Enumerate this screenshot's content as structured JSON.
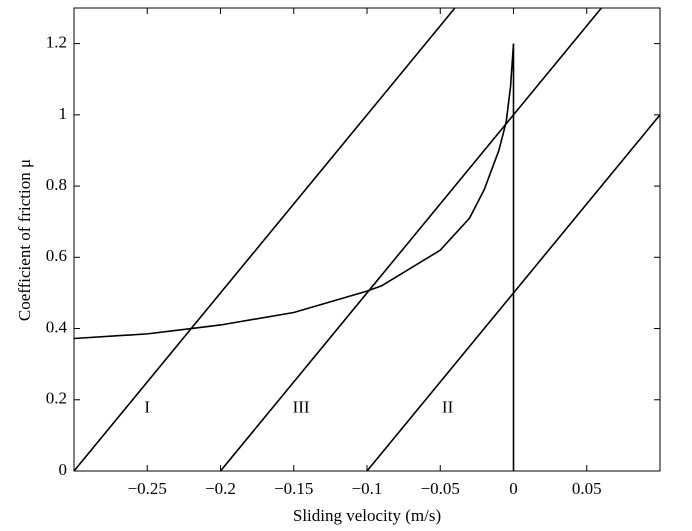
{
  "chart_data": {
    "type": "line",
    "x_label": "Sliding velocity (m/s)",
    "y_label": "Coefficient of friction μ",
    "xlim": [
      -0.3,
      0.1
    ],
    "ylim": [
      0,
      1.3
    ],
    "xticks": [
      {
        "value": -0.25,
        "label": "−0.25"
      },
      {
        "value": -0.2,
        "label": "−0.2"
      },
      {
        "value": -0.15,
        "label": "−0.15"
      },
      {
        "value": -0.1,
        "label": "−0.1"
      },
      {
        "value": -0.05,
        "label": "−0.05"
      },
      0,
      0.05
    ],
    "yticks": [
      0,
      0.2,
      0.4,
      0.6,
      0.8,
      1,
      1.2
    ],
    "grid": false,
    "series": [
      {
        "color": "#000000",
        "x": [
          -0.3,
          -0.25,
          -0.22,
          -0.2,
          -0.15,
          -0.1,
          -0.09,
          -0.05,
          -0.03,
          -0.02,
          -0.01,
          -0.005,
          -0.002,
          0,
          0
        ],
        "values": [
          0.372,
          0.385,
          0.4,
          0.41,
          0.445,
          0.505,
          0.52,
          0.62,
          0.71,
          0.79,
          0.9,
          0.98,
          1.08,
          1.2,
          0
        ]
      },
      {
        "color": "#000000",
        "x": [
          -0.3,
          -0.04
        ],
        "values": [
          0,
          1.3
        ]
      },
      {
        "color": "#000000",
        "x": [
          -0.2,
          0.06
        ],
        "values": [
          0,
          1.3
        ]
      },
      {
        "color": "#000000",
        "x": [
          -0.1,
          0.1
        ],
        "values": [
          0,
          1.0
        ]
      }
    ],
    "annotations": [
      {
        "text": "I",
        "x": -0.25,
        "y": 0.175
      },
      {
        "text": "III",
        "x": -0.145,
        "y": 0.175
      },
      {
        "text": "II",
        "x": -0.045,
        "y": 0.175
      }
    ]
  }
}
